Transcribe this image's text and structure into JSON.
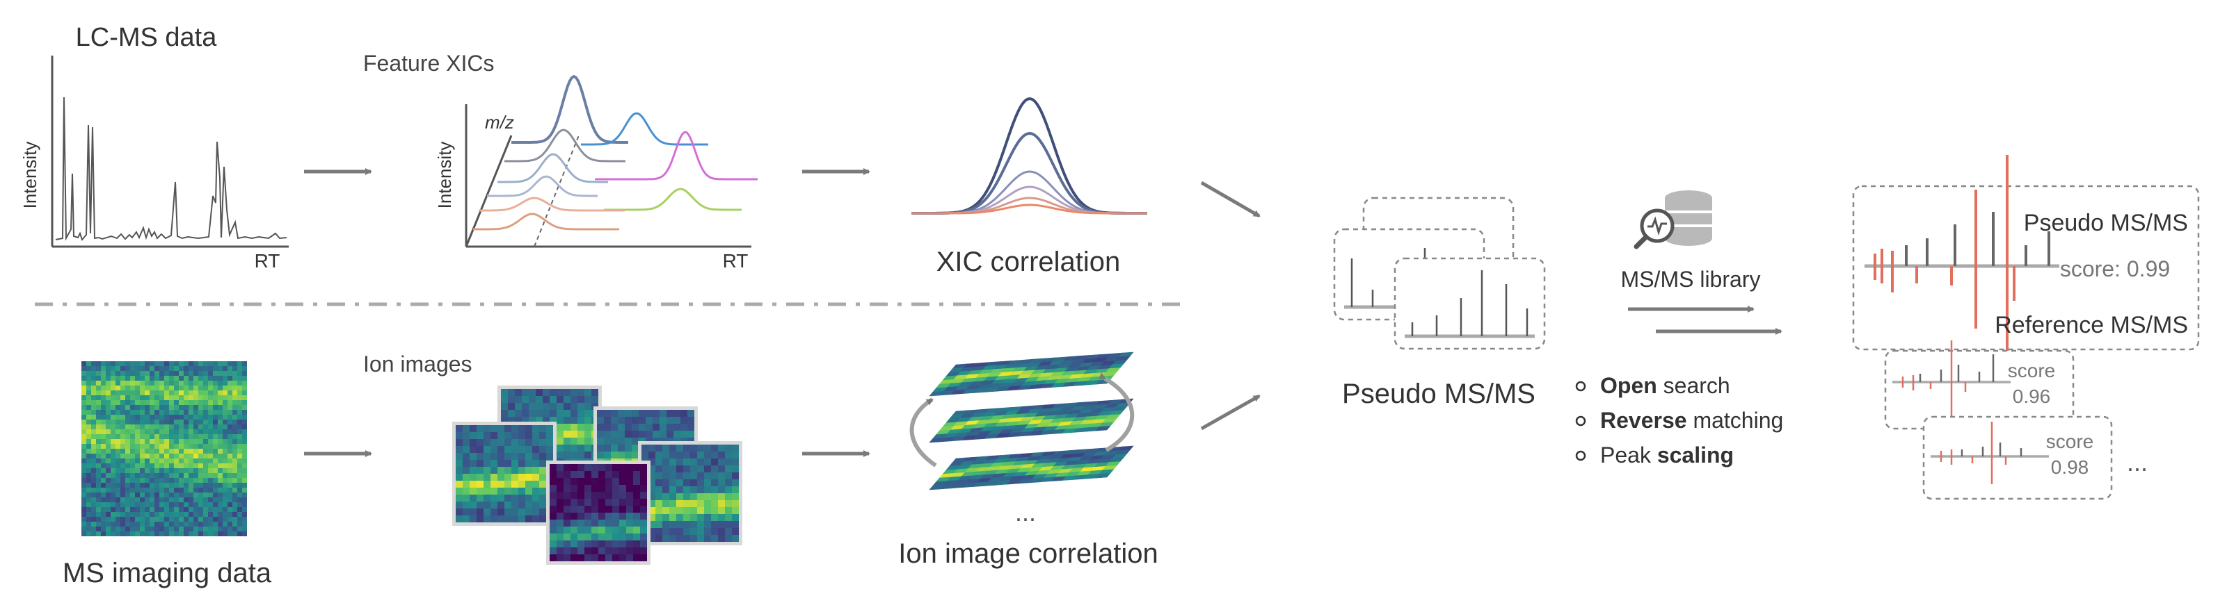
{
  "colors": {
    "text": "#333333",
    "muted": "#666666",
    "arrow": "#7a7a7a",
    "axis": "#555555",
    "pseudo_peak": "#666666",
    "reference_peak": "#e06f5e",
    "viridis": [
      "#440154",
      "#3b528b",
      "#21918c",
      "#5ec962",
      "#fde725"
    ],
    "xic_lines": [
      "#3f4f7a",
      "#5b6d97",
      "#8a8fb8",
      "#b2a0c3",
      "#d99b8a",
      "#e88a6a"
    ],
    "feature_xic_colors": [
      "#6a7fa3",
      "#4a90d0",
      "#d46fd8",
      "#9ab0c8",
      "#a8d060",
      "#e8b098",
      "#dca080"
    ]
  },
  "icons": {
    "database": "database-search-icon",
    "arrows": "arrow-icon",
    "bullet": "open-circle-bullet-icon",
    "ellipsis": "ellipsis-icon"
  },
  "top_row": {
    "lcms_title": "LC-MS data",
    "lcms_ylabel": "Intensity",
    "lcms_xlabel": "RT",
    "xics_title": "Feature XICs",
    "xics_ylabel": "Intensity",
    "xics_zlabel": "m/z",
    "xics_xlabel": "RT",
    "xic_corr_label": "XIC correlation"
  },
  "bottom_row": {
    "msi_label": "MS imaging data",
    "ion_images_title": "Ion images",
    "ellipsis": "...",
    "ion_corr_label": "Ion image correlation"
  },
  "middle": {
    "pseudo_label": "Pseudo MS/MS",
    "library_label": "MS/MS library",
    "options": [
      {
        "bold": "Open",
        "rest": " search",
        "bold_first": true
      },
      {
        "bold": "Reverse",
        "rest": " matching",
        "bold_first": true
      },
      {
        "pre": "Peak ",
        "bold": "scaling",
        "bold_first": false
      }
    ]
  },
  "results": {
    "main_top_label": "Pseudo MS/MS",
    "main_score": "score: 0.99",
    "main_bottom_label": "Reference MS/MS",
    "card2_score_word": "score",
    "card2_score_value": "0.96",
    "card3_score_word": "score",
    "card3_score_value": "0.98",
    "ellipsis": "..."
  }
}
